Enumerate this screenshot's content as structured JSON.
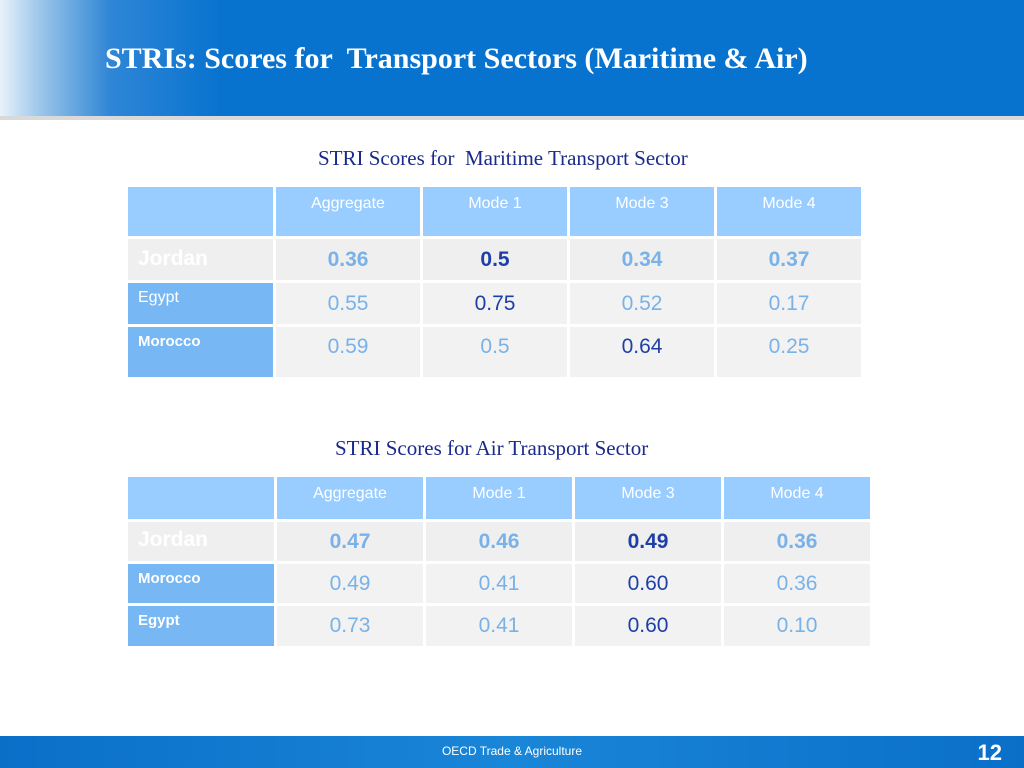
{
  "slide": {
    "title": "STRIs: Scores for  Transport Sectors (Maritime & Air)",
    "page_number": "12",
    "footer": "OECD Trade & Agriculture"
  },
  "maritime": {
    "caption": "STRI Scores for  Maritime Transport Sector",
    "headers": [
      "Aggregate",
      "Mode 1",
      "Mode 3",
      "Mode 4"
    ],
    "rows": [
      {
        "country": "Jordan",
        "values": [
          "0.36",
          "0.5",
          "0.34",
          "0.37"
        ]
      },
      {
        "country": "Egypt",
        "values": [
          "0.55",
          "0.75",
          "0.52",
          "0.17"
        ]
      },
      {
        "country": "Morocco",
        "values": [
          "0.59",
          "0.5",
          "0.64",
          "0.25"
        ]
      }
    ]
  },
  "air": {
    "caption": "STRI Scores for Air Transport Sector",
    "headers": [
      "Aggregate",
      "Mode 1",
      "Mode 3",
      "Mode 4"
    ],
    "rows": [
      {
        "country": "Jordan",
        "values": [
          "0.47",
          "0.46",
          "0.49",
          "0.36"
        ]
      },
      {
        "country": "Morocco",
        "values": [
          "0.49",
          "0.41",
          "0.60",
          "0.36"
        ]
      },
      {
        "country": "Egypt",
        "values": [
          "0.73",
          "0.41",
          "0.60",
          "0.10"
        ]
      }
    ]
  },
  "colors": {
    "header_blue": "#0873cf",
    "table_header": "#99ccff",
    "row_header": "#77b7f3",
    "value_light": "#79b2e8",
    "value_dark": "#1f3fa8"
  }
}
